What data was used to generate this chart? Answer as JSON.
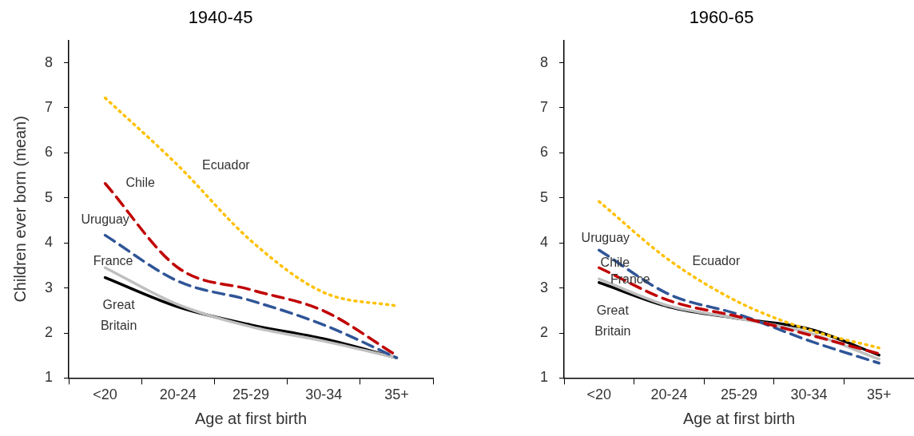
{
  "chart_data": [
    {
      "type": "line",
      "title": "1940-45",
      "xlabel": "Age at first birth",
      "ylabel": "Children ever born (mean)",
      "categories": [
        "<20",
        "20-24",
        "25-29",
        "30-34",
        "35+"
      ],
      "ylim": [
        1,
        8.5
      ],
      "yticks": [
        1,
        2,
        3,
        4,
        5,
        6,
        7,
        8
      ],
      "grid": false,
      "legend": false,
      "marker": "none",
      "series": [
        {
          "name": "Ecuador",
          "color": "#ffc000",
          "line_style": "dotted",
          "values": [
            7.22,
            5.72,
            4.05,
            2.9,
            2.6
          ]
        },
        {
          "name": "Chile",
          "color": "#c00000",
          "line_style": "dashed",
          "values": [
            5.32,
            3.45,
            2.96,
            2.49,
            1.5
          ]
        },
        {
          "name": "Uruguay",
          "color": "#2f5597",
          "line_style": "dashed",
          "values": [
            4.17,
            3.15,
            2.72,
            2.18,
            1.45
          ]
        },
        {
          "name": "France",
          "color": "#bfbfbf",
          "line_style": "solid",
          "values": [
            3.45,
            2.63,
            2.14,
            1.82,
            1.45
          ]
        },
        {
          "name": "Great Britain",
          "color": "#000000",
          "line_style": "solid",
          "values": [
            3.23,
            2.58,
            2.18,
            1.87,
            1.45
          ]
        }
      ]
    },
    {
      "type": "line",
      "title": "1960-65",
      "xlabel": "Age at first birth",
      "categories": [
        "<20",
        "20-24",
        "25-29",
        "30-34",
        "35+"
      ],
      "ylim": [
        1,
        8.5
      ],
      "yticks": [
        1,
        2,
        3,
        4,
        5,
        6,
        7,
        8
      ],
      "grid": false,
      "legend": false,
      "marker": "none",
      "series": [
        {
          "name": "Ecuador",
          "color": "#ffc000",
          "line_style": "dotted",
          "values": [
            4.92,
            3.62,
            2.68,
            2.07,
            1.67
          ]
        },
        {
          "name": "Chile",
          "color": "#c00000",
          "line_style": "dashed",
          "values": [
            3.45,
            2.72,
            2.36,
            1.96,
            1.54
          ]
        },
        {
          "name": "Uruguay",
          "color": "#2f5597",
          "line_style": "dashed",
          "values": [
            3.84,
            2.86,
            2.41,
            1.83,
            1.33
          ]
        },
        {
          "name": "France",
          "color": "#bfbfbf",
          "line_style": "solid",
          "values": [
            3.2,
            2.6,
            2.32,
            2.0,
            1.42
          ]
        },
        {
          "name": "Great Britain",
          "color": "#000000",
          "line_style": "solid",
          "values": [
            3.12,
            2.58,
            2.32,
            2.09,
            1.51
          ]
        }
      ]
    }
  ]
}
